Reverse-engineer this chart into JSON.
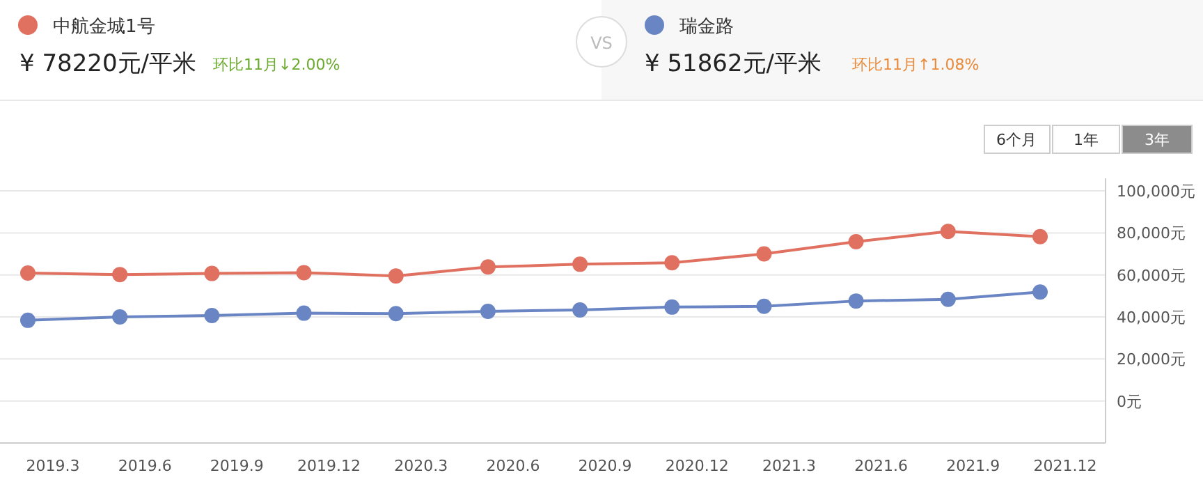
{
  "chart_data": {
    "type": "line",
    "categories": [
      "2019.3",
      "2019.6",
      "2019.9",
      "2019.12",
      "2020.3",
      "2020.6",
      "2020.9",
      "2020.12",
      "2021.3",
      "2021.6",
      "2021.9",
      "2021.12"
    ],
    "series": [
      {
        "name": "中航金城1号",
        "color": "#e07060",
        "values": [
          60900,
          60200,
          60700,
          61100,
          59500,
          63800,
          65100,
          65800,
          70000,
          75800,
          80700,
          78220
        ]
      },
      {
        "name": "瑞金路",
        "color": "#6a85c4",
        "values": [
          38400,
          40000,
          40700,
          41800,
          41600,
          42700,
          43300,
          44700,
          45100,
          47600,
          48400,
          51862
        ]
      }
    ],
    "ylim": [
      -20000,
      106000
    ],
    "yticks": [
      {
        "value": 0,
        "label": "0元"
      },
      {
        "value": 20000,
        "label": "20,000元"
      },
      {
        "value": 40000,
        "label": "40,000元"
      },
      {
        "value": 60000,
        "label": "60,000元"
      },
      {
        "value": 80000,
        "label": "80,000元"
      },
      {
        "value": 100000,
        "label": "100,000元"
      }
    ],
    "grid": "y",
    "legend": "top",
    "marker": "circle",
    "line_style": "solid",
    "annotations": [
      "¥ 78220元/平米",
      "环比11月↓2.00%",
      "VS",
      "¥ 51862元/平米",
      "环比11月↑1.08%",
      "6个月",
      "1年",
      "3年"
    ]
  }
}
